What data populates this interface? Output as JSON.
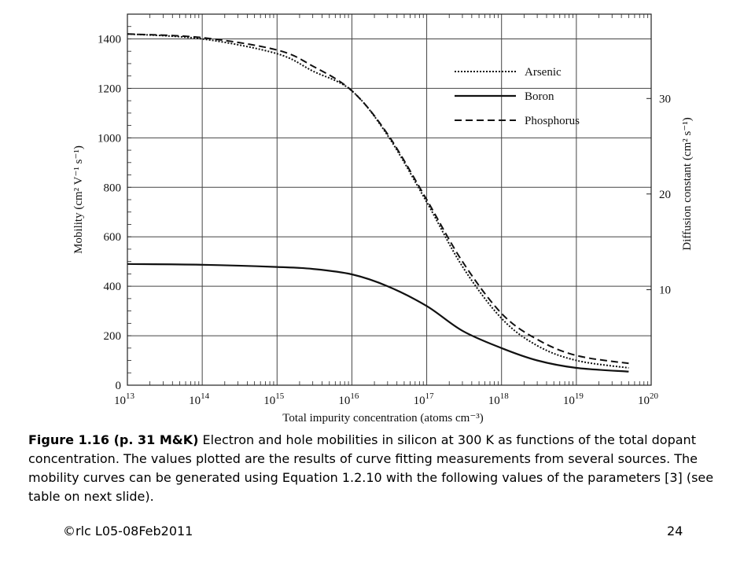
{
  "chart_data": {
    "type": "line",
    "xlabel": "Total impurity concentration (atoms cm⁻³)",
    "ylabel": "Mobility (cm² V⁻¹ s⁻¹)",
    "y2label": "Diffusion constant (cm² s⁻¹)",
    "x_scale": "log",
    "xlim": [
      10000000000000.0,
      1e+20
    ],
    "ylim": [
      0,
      1500
    ],
    "grid": true,
    "legend_position": "top-right",
    "x_tick_labels": [
      {
        "base": "10",
        "exp": "13"
      },
      {
        "base": "10",
        "exp": "14"
      },
      {
        "base": "10",
        "exp": "15"
      },
      {
        "base": "10",
        "exp": "16"
      },
      {
        "base": "10",
        "exp": "17"
      },
      {
        "base": "10",
        "exp": "18"
      },
      {
        "base": "10",
        "exp": "19"
      },
      {
        "base": "10",
        "exp": "20"
      }
    ],
    "y_ticks": [
      0,
      200,
      400,
      600,
      800,
      1000,
      1200,
      1400
    ],
    "y2_ticks": [
      {
        "label": "10",
        "mobility": 386
      },
      {
        "label": "20",
        "mobility": 773
      },
      {
        "label": "30",
        "mobility": 1159
      }
    ],
    "x": [
      10000000000000.0,
      100000000000000.0,
      1000000000000000.0,
      3000000000000000.0,
      1e+16,
      3e+16,
      1e+17,
      3e+17,
      1e+18,
      3e+18,
      1e+19,
      5e+19
    ],
    "series": [
      {
        "name": "Arsenic",
        "style": "dotted",
        "values": [
          1420,
          1400,
          1340,
          1270,
          1190,
          1010,
          740,
          480,
          270,
          160,
          100,
          70
        ]
      },
      {
        "name": "Boron",
        "style": "solid",
        "values": [
          490,
          487,
          478,
          470,
          448,
          400,
          320,
          220,
          150,
          100,
          70,
          55
        ]
      },
      {
        "name": "Phosphorus",
        "style": "dashed",
        "values": [
          1420,
          1405,
          1355,
          1290,
          1190,
          1015,
          750,
          500,
          290,
          185,
          120,
          88
        ]
      }
    ]
  },
  "caption": {
    "bold": "Figure 1.16  (p. 31 M&K)",
    "text": " Electron and hole mobilities in silicon at 300 K as functions of the total dopant concentration. The values plotted are the results of curve fitting measurements from several sources. The mobility curves can be generated using Equation 1.2.10 with the following values of the parameters [3] (see table on next slide)."
  },
  "footer": {
    "left": "©rlc L05-08Feb2011",
    "right": "24"
  }
}
